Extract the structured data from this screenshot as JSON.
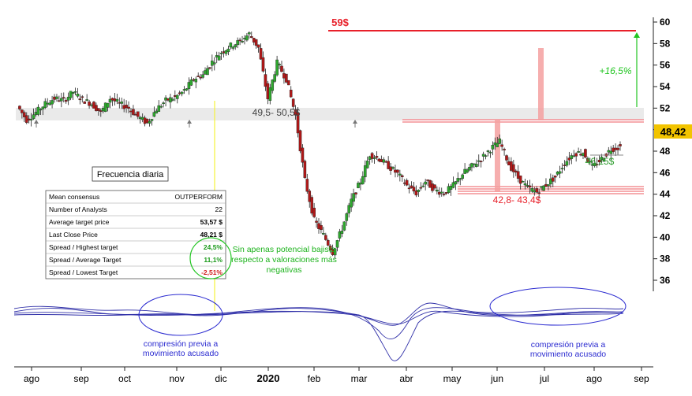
{
  "chart_data": {
    "type": "candlestick",
    "title": "",
    "y_ticks": [
      "36",
      "38",
      "40",
      "42",
      "44",
      "46",
      "48",
      "50",
      "52",
      "54",
      "56",
      "58",
      "60"
    ],
    "ylim": [
      35.5,
      60.5
    ],
    "last_price_label": "48,42",
    "last_price": 48.42,
    "x_ticks": [
      "ago",
      "sep",
      "oct",
      "nov",
      "dic",
      "2020",
      "feb",
      "mar",
      "abr",
      "may",
      "jun",
      "jul",
      "ago",
      "sep"
    ],
    "x_ticks_bold": [
      "2020"
    ],
    "price_series": [
      52.2,
      50.9,
      51.6,
      52.4,
      52.9,
      52.7,
      53.5,
      52.8,
      52.4,
      51.6,
      52.9,
      52.4,
      52.0,
      51.2,
      50.6,
      51.9,
      52.7,
      53.0,
      53.6,
      54.7,
      55.1,
      56.3,
      57.2,
      57.8,
      58.2,
      58.9,
      57.6,
      52.9,
      56.2,
      54.7,
      51.3,
      45.3,
      41.6,
      40.2,
      38.6,
      40.8,
      43.4,
      45.2,
      47.7,
      47.3,
      46.6,
      45.9,
      44.8,
      44.1,
      45.2,
      44.4,
      44.1,
      44.8,
      45.9,
      46.6,
      47.3,
      48.2,
      48.9,
      46.8,
      45.5,
      44.6,
      44.2,
      44.9,
      45.6,
      46.9,
      47.8,
      47.9,
      46.5,
      47.3,
      48.2,
      48.4
    ],
    "annotations": {
      "peak": "59$",
      "resistance": "49,5- 50,5$",
      "support": "42,8- 43,4$",
      "upside": "+16,5%",
      "recent_support": "46,15$",
      "note": "Sin apenas potencial bajista respecto a valoraciones más negativas",
      "compression_left": [
        "compresión previa a",
        "movimiento acusado"
      ],
      "compression_right": [
        "compresión previa a",
        "movimiento acusado"
      ]
    },
    "frequency_label": "Frecuencia diaria",
    "consensus_table": {
      "header": [
        "Mean consensus",
        "OUTPERFORM"
      ],
      "rows": [
        {
          "label": "Number of Analysts",
          "value": "22",
          "color": "#000000",
          "bold": false
        },
        {
          "label": "Average target price",
          "value": "53,57 $",
          "color": "#000000",
          "bold": true
        },
        {
          "label": "Last Close Price",
          "value": "48,21 $",
          "color": "#000000",
          "bold": true
        },
        {
          "label": "Spread / Highest target",
          "value": "24,5%",
          "color": "#1a9a1a",
          "bold": true
        },
        {
          "label": "Spread / Average Target",
          "value": "11,1%",
          "color": "#1a9a1a",
          "bold": true
        },
        {
          "label": "Spread / Lowest Target",
          "value": "-2,51%",
          "color": "#d11a1a",
          "bold": true
        }
      ]
    },
    "colors": {
      "up_candle": "#2ea82e",
      "down_candle": "#b01818",
      "resistance": "#e8202a",
      "support_band": "#e8202a",
      "highlight": "#f4a0a0",
      "ellipse": "#2a2ad0",
      "vertical_marker": "#ffff3a",
      "price_box": "#f2c400"
    }
  }
}
